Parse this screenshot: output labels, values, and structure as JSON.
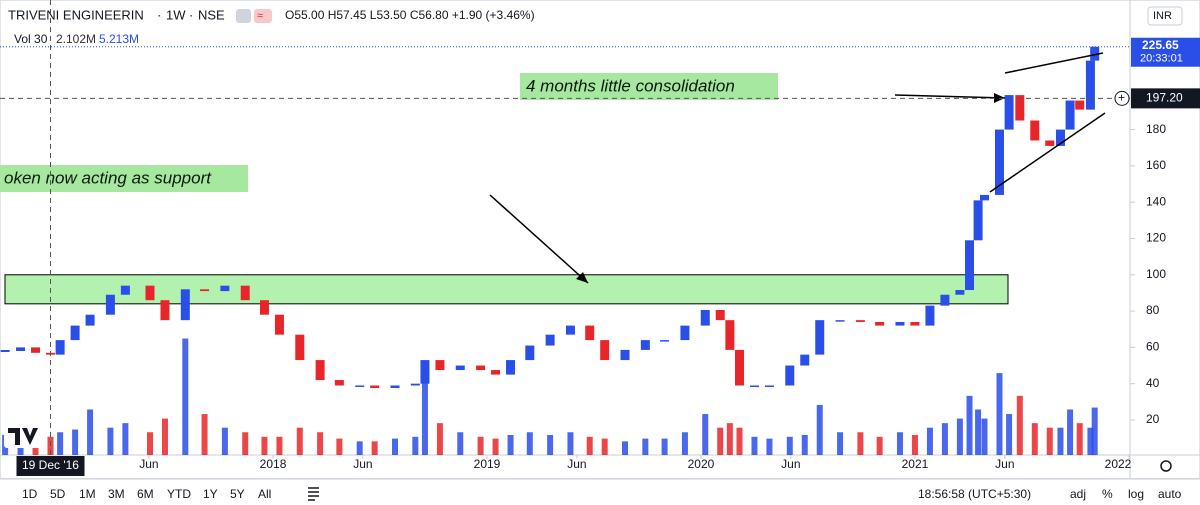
{
  "chart_data": {
    "type": "candlestick",
    "symbol": "TRIVENI ENGINEERIN",
    "interval": "1W",
    "exchange": "NSE",
    "legend_open": "O55.00",
    "legend_high": "H57.45",
    "legend_low": "L53.50",
    "legend_close": "C56.80",
    "legend_change": "+1.90 (+3.46%)",
    "volume_title": "Vol 30",
    "volume_ma": "2.102M",
    "volume_last": "5.213M",
    "currency": "INR",
    "annotations": [
      "4 months little consolidation",
      "oken now acting as support"
    ],
    "up_color": "#2a4ee8",
    "down_color": "#e8262a",
    "xlim": [
      2016.724,
      2022.005
    ],
    "xticks": [
      {
        "value": 2017.42,
        "label": "Jun"
      },
      2018,
      {
        "value": 2018.42,
        "label": "Jun"
      },
      2019,
      {
        "value": 2019.42,
        "label": "Jun"
      },
      2020,
      {
        "value": 2020.42,
        "label": "Jun"
      },
      2021,
      {
        "value": 2021.42,
        "label": "Jun"
      },
      2022
    ],
    "ylim": [
      0.7,
      251.4
    ],
    "yticks": [
      20,
      40,
      60,
      80,
      100,
      120,
      140,
      160,
      180
    ],
    "grid": false,
    "volume_ylim": [
      0,
      50
    ],
    "support_zone": [
      84,
      100
    ],
    "crosshair_x": {
      "value": 2016.96,
      "label": "19 Dec '16"
    },
    "crosshair_price": {
      "value": 197.2,
      "label": "197.20"
    },
    "last_price": {
      "value": 225.65,
      "label": "225.65"
    },
    "countdown": "20:33:01",
    "x": [
      2016.748,
      2016.82,
      2016.89,
      2016.96,
      2017.005,
      2017.075,
      2017.145,
      2017.24,
      2017.31,
      2017.425,
      2017.495,
      2017.59,
      2017.68,
      2017.775,
      2017.87,
      2017.96,
      2018.03,
      2018.125,
      2018.22,
      2018.31,
      2018.405,
      2018.475,
      2018.57,
      2018.665,
      2018.71,
      2018.78,
      2018.875,
      2018.97,
      2019.04,
      2019.11,
      2019.2,
      2019.295,
      2019.39,
      2019.48,
      2019.55,
      2019.645,
      2019.74,
      2019.83,
      2019.925,
      2020.02,
      2020.09,
      2020.135,
      2020.18,
      2020.25,
      2020.32,
      2020.415,
      2020.485,
      2020.555,
      2020.65,
      2020.745,
      2020.835,
      2020.93,
      2021.0,
      2021.07,
      2021.14,
      2021.21,
      2021.255,
      2021.295,
      2021.325,
      2021.395,
      2021.44,
      2021.49,
      2021.56,
      2021.63,
      2021.68,
      2021.725,
      2021.77,
      2021.82,
      2021.84
    ],
    "series": [
      {
        "name": "Close",
        "values": [
          58,
          60,
          57,
          56,
          64,
          72,
          78,
          89,
          94,
          86,
          75,
          92,
          91,
          94,
          86,
          78,
          67,
          53,
          42,
          39,
          39,
          37.6,
          39,
          40,
          53,
          47.5,
          50,
          47.5,
          45,
          53,
          61,
          67,
          72,
          64,
          53,
          58.6,
          64,
          64,
          72,
          80.6,
          75,
          58.6,
          39,
          39,
          39,
          50,
          56,
          75,
          75,
          74,
          72,
          74,
          72,
          83,
          89,
          91.6,
          119,
          141,
          144,
          180,
          199,
          185,
          174,
          171,
          180,
          196,
          191,
          218,
          225.65
        ]
      },
      {
        "name": "Volume",
        "values": [
          2.2,
          1.8,
          2.5,
          2.0,
          2.5,
          2.8,
          5.0,
          3.0,
          3.5,
          2.5,
          4.0,
          12.8,
          4.5,
          3.0,
          2.5,
          2.0,
          2.0,
          3.0,
          2.5,
          1.8,
          1.5,
          1.5,
          1.8,
          2.0,
          10.0,
          3.5,
          2.5,
          2.0,
          1.8,
          2.2,
          2.5,
          2.2,
          2.5,
          2.0,
          1.8,
          1.5,
          1.8,
          1.8,
          2.5,
          4.5,
          3.0,
          3.5,
          3.0,
          2.0,
          1.8,
          2.0,
          2.2,
          5.5,
          2.5,
          2.5,
          2.0,
          2.5,
          2.2,
          3.0,
          3.5,
          4.0,
          6.5,
          5.0,
          4.0,
          9.0,
          4.5,
          6.5,
          3.5,
          3.0,
          3.0,
          5.0,
          3.5,
          3.0,
          5.213
        ]
      }
    ]
  },
  "toolbar": {
    "ranges": [
      "1D",
      "5D",
      "1M",
      "3M",
      "6M",
      "YTD",
      "1Y",
      "5Y",
      "All"
    ],
    "clock": "18:56:58 (UTC+5:30)",
    "options": [
      "adj",
      "%",
      "log",
      "auto"
    ]
  }
}
